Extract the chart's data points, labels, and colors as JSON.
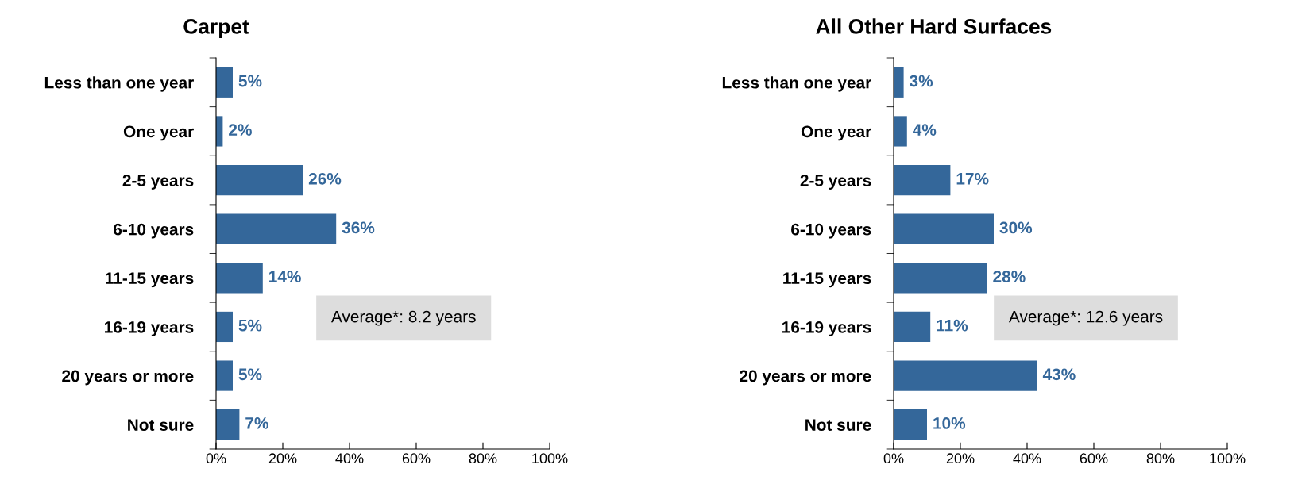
{
  "chart_data": [
    {
      "type": "bar",
      "orientation": "horizontal",
      "title": "Carpet",
      "categories": [
        "Less than one year",
        "One year",
        "2-5 years",
        "6-10 years",
        "11-15 years",
        "16-19 years",
        "20 years or more",
        "Not sure"
      ],
      "values": [
        5,
        2,
        26,
        36,
        14,
        5,
        5,
        7
      ],
      "value_labels": [
        "5%",
        "2%",
        "26%",
        "36%",
        "14%",
        "5%",
        "5%",
        "7%"
      ],
      "color": "#34679a",
      "xlim": [
        0,
        100
      ],
      "xticks": [
        {
          "value": 0,
          "label": "0%"
        },
        {
          "value": 20,
          "label": "20%"
        },
        {
          "value": 40,
          "label": "40%"
        },
        {
          "value": 60,
          "label": "60%"
        },
        {
          "value": 80,
          "label": "80%"
        },
        {
          "value": 100,
          "label": "100%"
        }
      ],
      "annotations": [
        "Average*: 8.2 years"
      ]
    },
    {
      "type": "bar",
      "orientation": "horizontal",
      "title": "All Other Hard Surfaces",
      "categories": [
        "Less than one year",
        "One year",
        "2-5 years",
        "6-10 years",
        "11-15 years",
        "16-19 years",
        "20 years or more",
        "Not sure"
      ],
      "values": [
        3,
        4,
        17,
        30,
        28,
        11,
        43,
        10
      ],
      "value_labels": [
        "3%",
        "4%",
        "17%",
        "30%",
        "28%",
        "11%",
        "43%",
        "10%"
      ],
      "color": "#34679a",
      "xlim": [
        0,
        100
      ],
      "xticks": [
        {
          "value": 0,
          "label": "0%"
        },
        {
          "value": 20,
          "label": "20%"
        },
        {
          "value": 40,
          "label": "40%"
        },
        {
          "value": 60,
          "label": "60%"
        },
        {
          "value": 80,
          "label": "80%"
        },
        {
          "value": 100,
          "label": "100%"
        }
      ],
      "annotations": [
        "Average*: 12.6 years"
      ]
    }
  ]
}
